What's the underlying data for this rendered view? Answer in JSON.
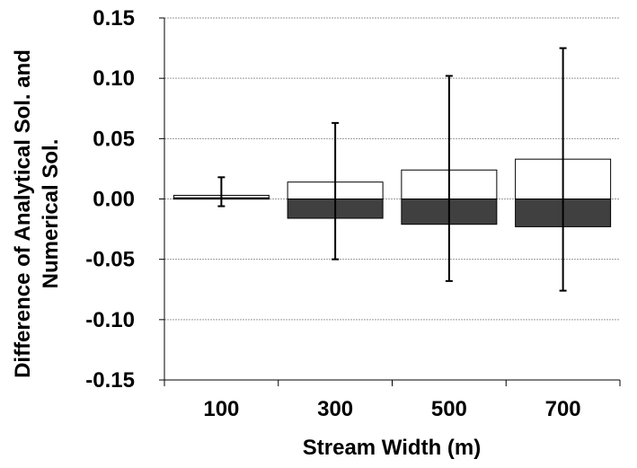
{
  "chart_data": {
    "type": "bar",
    "categories": [
      "100",
      "300",
      "500",
      "700"
    ],
    "series": [
      {
        "values": [
          0.003,
          0.014,
          0.024,
          0.033
        ],
        "color": "#ffffff"
      },
      {
        "values": [
          0.001,
          -0.016,
          -0.021,
          -0.023
        ],
        "color": "#404040"
      }
    ],
    "error_bars": [
      {
        "low": -0.006,
        "high": 0.018
      },
      {
        "low": -0.05,
        "high": 0.063
      },
      {
        "low": -0.068,
        "high": 0.102
      },
      {
        "low": -0.076,
        "high": 0.125
      }
    ],
    "yticks": [
      "-0.15",
      "-0.10",
      "-0.05",
      "0.00",
      "0.05",
      "0.10",
      "0.15"
    ],
    "ylim": [
      -0.15,
      0.15
    ],
    "xlabel": "Stream Width (m)",
    "ylabel_line1": "Difference of Analytical Sol.  and",
    "ylabel_line2": "Numerical Sol.",
    "grid": true
  }
}
